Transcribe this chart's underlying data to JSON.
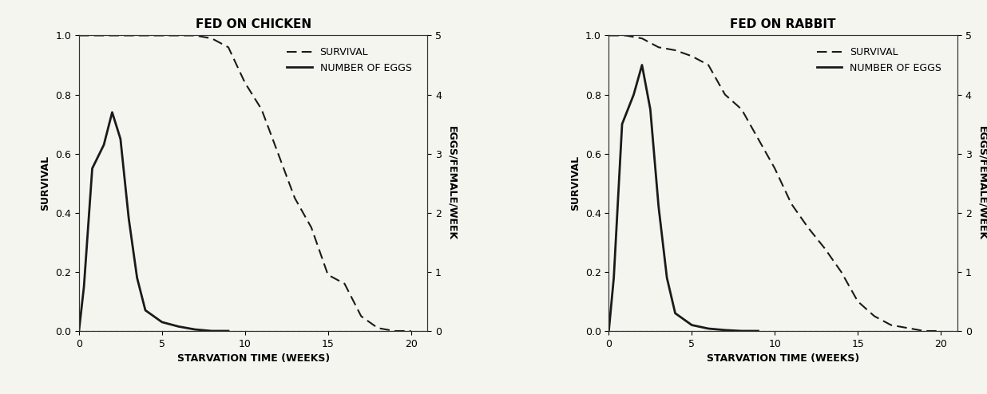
{
  "chicken": {
    "title": "FED ON CHICKEN",
    "survival_x": [
      0,
      1,
      2,
      3,
      4,
      5,
      6,
      7,
      8,
      9,
      10,
      11,
      12,
      13,
      14,
      15,
      16,
      17,
      18,
      19,
      20
    ],
    "survival_y": [
      1.0,
      1.0,
      1.0,
      1.0,
      1.0,
      1.0,
      1.0,
      1.0,
      0.99,
      0.96,
      0.84,
      0.75,
      0.6,
      0.45,
      0.35,
      0.19,
      0.16,
      0.05,
      0.01,
      0.0,
      0.0
    ],
    "eggs_x": [
      0,
      0.3,
      0.8,
      1.5,
      2.0,
      2.5,
      3.0,
      3.5,
      4.0,
      5.0,
      6.0,
      7.0,
      8.0,
      9.0
    ],
    "eggs_y": [
      0.0,
      0.15,
      0.55,
      0.63,
      0.74,
      0.65,
      0.38,
      0.18,
      0.07,
      0.03,
      0.015,
      0.005,
      0.0,
      0.0
    ]
  },
  "rabbit": {
    "title": "FED ON RABBIT",
    "survival_x": [
      0,
      1,
      2,
      3,
      4,
      5,
      6,
      7,
      8,
      9,
      10,
      11,
      12,
      13,
      14,
      15,
      16,
      17,
      18,
      19,
      20
    ],
    "survival_y": [
      1.0,
      1.0,
      0.99,
      0.96,
      0.95,
      0.93,
      0.9,
      0.8,
      0.75,
      0.65,
      0.55,
      0.43,
      0.35,
      0.28,
      0.2,
      0.1,
      0.05,
      0.02,
      0.01,
      0.0,
      0.0
    ],
    "eggs_x": [
      0,
      0.3,
      0.8,
      1.5,
      2.0,
      2.5,
      3.0,
      3.5,
      4.0,
      5.0,
      6.0,
      7.0,
      8.0,
      9.0
    ],
    "eggs_y": [
      0.0,
      0.18,
      0.7,
      0.8,
      0.9,
      0.75,
      0.42,
      0.18,
      0.06,
      0.02,
      0.008,
      0.003,
      0.0,
      0.0
    ]
  },
  "xlim": [
    0,
    21
  ],
  "ylim_left": [
    0,
    1.0
  ],
  "ylim_right": [
    0,
    5
  ],
  "eggs_scale": 5.0,
  "xlabel": "STARVATION TIME (WEEKS)",
  "ylabel_left": "SURVIVAL",
  "ylabel_right": "EGGS/FEMALE/WEEK",
  "survival_label": "SURVIVAL",
  "eggs_label": "NUMBER OF EGGS",
  "line_color": "#1a1a1a",
  "zero_line_color": "#aaaaaa",
  "background_color": "#f5f5f0",
  "title_fontsize": 11,
  "label_fontsize": 9,
  "tick_fontsize": 9,
  "legend_fontsize": 9
}
